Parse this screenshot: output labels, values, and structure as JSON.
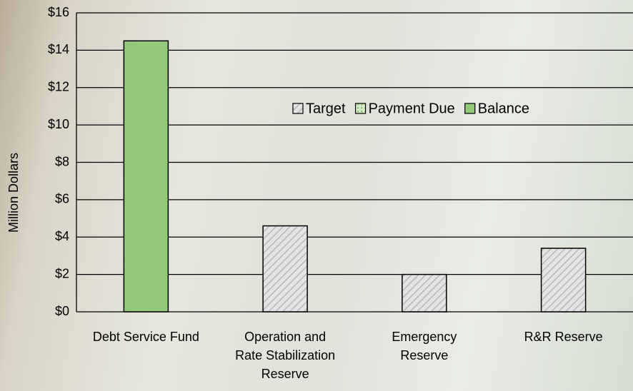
{
  "chart_data": {
    "type": "bar",
    "y_label": "Million Dollars",
    "categories": [
      "Debt Service Fund",
      "Operation and\nRate Stabilization\nReserve",
      "Emergency\nReserve",
      "R&R Reserve"
    ],
    "series": [
      {
        "name": "Target",
        "color": "#e4e4e4",
        "values": [
          null,
          4.6,
          2.0,
          3.4
        ]
      },
      {
        "name": "Payment Due",
        "color": "#d7ecc9",
        "values": [
          null,
          null,
          null,
          null
        ]
      },
      {
        "name": "Balance",
        "color": "#92c97a",
        "values": [
          14.5,
          null,
          null,
          null
        ]
      }
    ],
    "ylim": [
      0,
      16
    ],
    "yticks": [
      {
        "value": 0,
        "label": "$0"
      },
      {
        "value": 2,
        "label": "$2"
      },
      {
        "value": 4,
        "label": "$4"
      },
      {
        "value": 6,
        "label": "$6"
      },
      {
        "value": 8,
        "label": "$8"
      },
      {
        "value": 10,
        "label": "$10"
      },
      {
        "value": 12,
        "label": "$12"
      },
      {
        "value": 14,
        "label": "$14"
      },
      {
        "value": 16,
        "label": "$16"
      }
    ],
    "grid": true,
    "legend": "inside"
  }
}
